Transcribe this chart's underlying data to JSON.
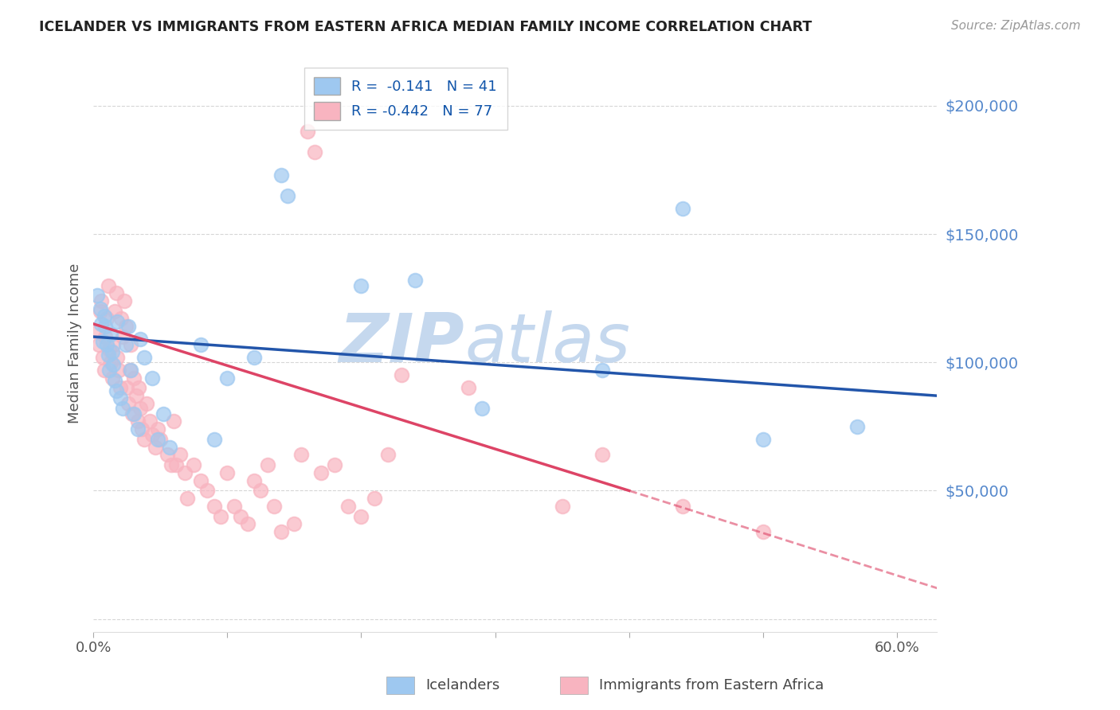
{
  "title": "ICELANDER VS IMMIGRANTS FROM EASTERN AFRICA MEDIAN FAMILY INCOME CORRELATION CHART",
  "source": "Source: ZipAtlas.com",
  "ylabel": "Median Family Income",
  "xlim": [
    0.0,
    0.63
  ],
  "ylim": [
    -5000,
    220000
  ],
  "yticks": [
    0,
    50000,
    100000,
    150000,
    200000
  ],
  "ytick_labels": [
    "",
    "$50,000",
    "$100,000",
    "$150,000",
    "$200,000"
  ],
  "xticks": [
    0.0,
    0.1,
    0.2,
    0.3,
    0.4,
    0.5,
    0.6
  ],
  "xtick_labels": [
    "0.0%",
    "",
    "",
    "",
    "",
    "",
    "60.0%"
  ],
  "blue_color": "#9EC8F0",
  "pink_color": "#F8B4C0",
  "blue_line_color": "#2255AA",
  "pink_line_color": "#DD4466",
  "ytick_color": "#5588CC",
  "r_blue": -0.141,
  "n_blue": 41,
  "r_pink": -0.442,
  "n_pink": 77,
  "watermark_zip": "ZIP",
  "watermark_atlas": "atlas",
  "watermark_color": "#C5D8EE",
  "legend_label_blue": "Icelanders",
  "legend_label_pink": "Immigrants from Eastern Africa",
  "blue_scatter": [
    [
      0.003,
      126000
    ],
    [
      0.005,
      121000
    ],
    [
      0.006,
      115000
    ],
    [
      0.007,
      108000
    ],
    [
      0.008,
      118000
    ],
    [
      0.009,
      114000
    ],
    [
      0.01,
      107000
    ],
    [
      0.011,
      103000
    ],
    [
      0.012,
      97000
    ],
    [
      0.013,
      111000
    ],
    [
      0.014,
      104000
    ],
    [
      0.015,
      99000
    ],
    [
      0.016,
      93000
    ],
    [
      0.017,
      89000
    ],
    [
      0.018,
      116000
    ],
    [
      0.02,
      86000
    ],
    [
      0.022,
      82000
    ],
    [
      0.024,
      107000
    ],
    [
      0.026,
      114000
    ],
    [
      0.028,
      97000
    ],
    [
      0.03,
      80000
    ],
    [
      0.033,
      74000
    ],
    [
      0.035,
      109000
    ],
    [
      0.038,
      102000
    ],
    [
      0.044,
      94000
    ],
    [
      0.048,
      70000
    ],
    [
      0.052,
      80000
    ],
    [
      0.057,
      67000
    ],
    [
      0.08,
      107000
    ],
    [
      0.09,
      70000
    ],
    [
      0.1,
      94000
    ],
    [
      0.12,
      102000
    ],
    [
      0.14,
      173000
    ],
    [
      0.145,
      165000
    ],
    [
      0.2,
      130000
    ],
    [
      0.24,
      132000
    ],
    [
      0.29,
      82000
    ],
    [
      0.38,
      97000
    ],
    [
      0.44,
      160000
    ],
    [
      0.5,
      70000
    ],
    [
      0.57,
      75000
    ]
  ],
  "pink_scatter": [
    [
      0.003,
      112000
    ],
    [
      0.004,
      107000
    ],
    [
      0.005,
      120000
    ],
    [
      0.006,
      124000
    ],
    [
      0.007,
      102000
    ],
    [
      0.008,
      97000
    ],
    [
      0.009,
      110000
    ],
    [
      0.01,
      117000
    ],
    [
      0.011,
      130000
    ],
    [
      0.012,
      105000
    ],
    [
      0.013,
      100000
    ],
    [
      0.014,
      94000
    ],
    [
      0.015,
      107000
    ],
    [
      0.016,
      120000
    ],
    [
      0.017,
      127000
    ],
    [
      0.018,
      102000
    ],
    [
      0.019,
      97000
    ],
    [
      0.02,
      90000
    ],
    [
      0.021,
      117000
    ],
    [
      0.022,
      110000
    ],
    [
      0.023,
      124000
    ],
    [
      0.024,
      114000
    ],
    [
      0.025,
      90000
    ],
    [
      0.026,
      84000
    ],
    [
      0.027,
      97000
    ],
    [
      0.028,
      107000
    ],
    [
      0.029,
      80000
    ],
    [
      0.03,
      94000
    ],
    [
      0.032,
      87000
    ],
    [
      0.033,
      77000
    ],
    [
      0.034,
      90000
    ],
    [
      0.035,
      82000
    ],
    [
      0.036,
      74000
    ],
    [
      0.038,
      70000
    ],
    [
      0.04,
      84000
    ],
    [
      0.042,
      77000
    ],
    [
      0.044,
      72000
    ],
    [
      0.046,
      67000
    ],
    [
      0.048,
      74000
    ],
    [
      0.05,
      70000
    ],
    [
      0.055,
      64000
    ],
    [
      0.058,
      60000
    ],
    [
      0.06,
      77000
    ],
    [
      0.062,
      60000
    ],
    [
      0.065,
      64000
    ],
    [
      0.068,
      57000
    ],
    [
      0.07,
      47000
    ],
    [
      0.075,
      60000
    ],
    [
      0.08,
      54000
    ],
    [
      0.085,
      50000
    ],
    [
      0.09,
      44000
    ],
    [
      0.095,
      40000
    ],
    [
      0.1,
      57000
    ],
    [
      0.105,
      44000
    ],
    [
      0.11,
      40000
    ],
    [
      0.115,
      37000
    ],
    [
      0.12,
      54000
    ],
    [
      0.125,
      50000
    ],
    [
      0.13,
      60000
    ],
    [
      0.135,
      44000
    ],
    [
      0.14,
      34000
    ],
    [
      0.15,
      37000
    ],
    [
      0.155,
      64000
    ],
    [
      0.16,
      190000
    ],
    [
      0.165,
      182000
    ],
    [
      0.17,
      57000
    ],
    [
      0.18,
      60000
    ],
    [
      0.19,
      44000
    ],
    [
      0.2,
      40000
    ],
    [
      0.21,
      47000
    ],
    [
      0.22,
      64000
    ],
    [
      0.23,
      95000
    ],
    [
      0.28,
      90000
    ],
    [
      0.35,
      44000
    ],
    [
      0.38,
      64000
    ],
    [
      0.44,
      44000
    ],
    [
      0.5,
      34000
    ]
  ],
  "blue_trendline_solid": [
    [
      0.0,
      110000
    ],
    [
      0.63,
      87000
    ]
  ],
  "pink_trendline_solid": [
    [
      0.0,
      115000
    ],
    [
      0.4,
      50000
    ]
  ],
  "pink_trendline_dashed": [
    [
      0.4,
      50000
    ],
    [
      0.63,
      12000
    ]
  ]
}
